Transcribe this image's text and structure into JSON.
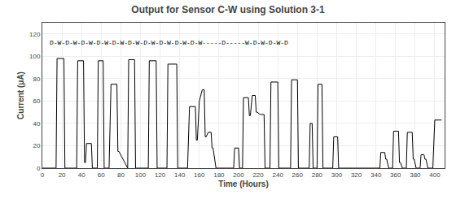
{
  "chart_data": {
    "type": "line",
    "title": "Output for Sensor C-W using Solution 3-1",
    "xlabel": "Time (Hours)",
    "ylabel": "Current (μA)",
    "annotation": "D-W-D-W-D-W-D-W-D-W-D-W-D-W-D-W-D-W-D-W-----D-----W-D-W-D-W-D",
    "color": "#000000",
    "grid": true,
    "xlim": [
      0,
      410
    ],
    "ylim": [
      0,
      130
    ],
    "xticks": [
      0,
      20,
      40,
      60,
      80,
      100,
      120,
      140,
      160,
      180,
      200,
      220,
      240,
      260,
      280,
      300,
      320,
      340,
      360,
      380,
      400
    ],
    "yticks": [
      0,
      20,
      40,
      60,
      80,
      100,
      120
    ],
    "x": [
      0,
      14,
      15,
      22,
      23,
      35,
      36,
      42,
      43,
      44,
      45,
      50,
      51,
      56,
      57,
      62,
      63,
      68,
      70,
      76,
      77,
      78,
      87,
      88,
      94,
      95,
      108,
      109,
      116,
      117,
      127,
      128,
      137,
      138,
      148,
      150,
      156,
      157,
      158,
      160,
      163,
      165,
      166,
      167,
      169,
      172,
      173,
      174,
      177,
      195,
      196,
      200,
      201,
      204,
      205,
      210,
      211,
      212,
      214,
      217,
      218,
      219,
      222,
      226,
      227,
      232,
      233,
      240,
      241,
      253,
      254,
      260,
      261,
      272,
      273,
      275,
      276,
      280,
      281,
      285,
      286,
      296,
      297,
      301,
      302,
      340,
      344,
      345,
      349,
      350,
      351,
      353,
      357,
      358,
      363,
      364,
      365,
      367,
      371,
      372,
      377,
      378,
      379,
      381,
      385,
      386,
      389,
      390,
      391,
      393,
      398,
      400,
      407
    ],
    "values": [
      0,
      0,
      98,
      98,
      0,
      0,
      96,
      96,
      5,
      5,
      22,
      22,
      0,
      0,
      96,
      96,
      0,
      0,
      75,
      75,
      15,
      15,
      0,
      97,
      97,
      0,
      0,
      96,
      96,
      0,
      0,
      93,
      93,
      0,
      0,
      55,
      55,
      25,
      25,
      60,
      70,
      70,
      28,
      28,
      32,
      32,
      18,
      18,
      0,
      0,
      18,
      18,
      0,
      0,
      63,
      63,
      47,
      47,
      65,
      65,
      50,
      50,
      48,
      48,
      0,
      0,
      77,
      77,
      0,
      0,
      79,
      79,
      0,
      0,
      40,
      40,
      0,
      0,
      75,
      75,
      0,
      0,
      28,
      28,
      0,
      0,
      0,
      14,
      14,
      8,
      8,
      0,
      0,
      33,
      33,
      5,
      5,
      0,
      0,
      32,
      32,
      8,
      8,
      0,
      0,
      12,
      12,
      8,
      8,
      0,
      0,
      43,
      43
    ]
  }
}
